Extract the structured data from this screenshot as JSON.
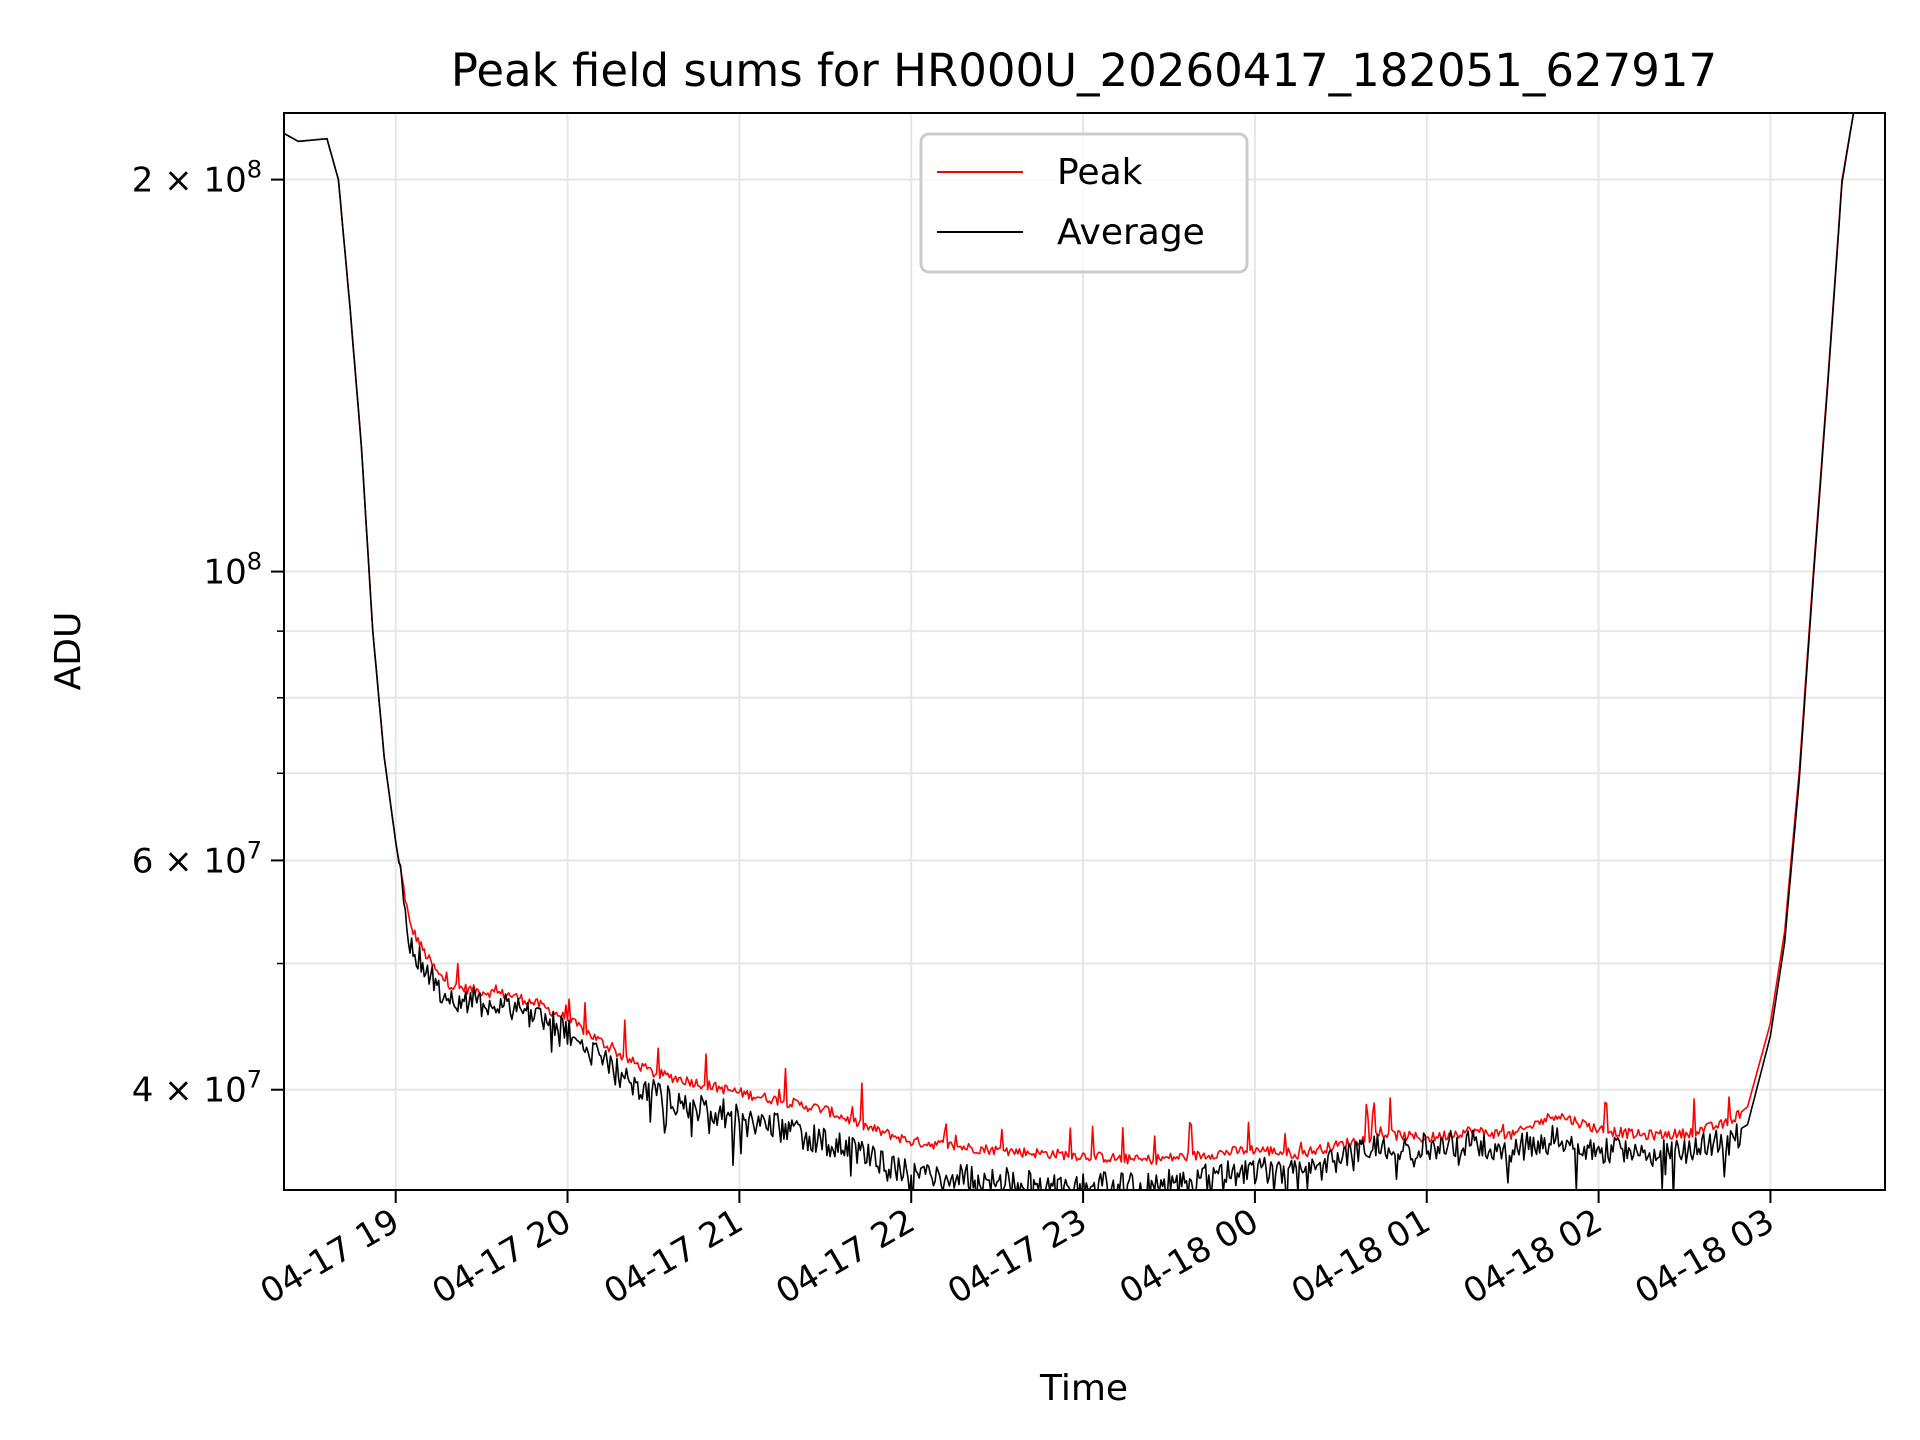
{
  "chart_data": {
    "type": "line",
    "title": "Peak field sums for HR000U_20260417_182051_627917",
    "xlabel": "Time",
    "ylabel": "ADU",
    "yscale": "log",
    "xlim": [
      "2026-04-17 18:21",
      "2026-04-18 03:40"
    ],
    "ylim": [
      33500000,
      225000000
    ],
    "xticks": [
      {
        "label": "04-17 19",
        "time": "2026-04-17 19:00"
      },
      {
        "label": "04-17 20",
        "time": "2026-04-17 20:00"
      },
      {
        "label": "04-17 21",
        "time": "2026-04-17 21:00"
      },
      {
        "label": "04-17 22",
        "time": "2026-04-17 22:00"
      },
      {
        "label": "04-17 23",
        "time": "2026-04-17 23:00"
      },
      {
        "label": "04-18 00",
        "time": "2026-04-18 00:00"
      },
      {
        "label": "04-18 01",
        "time": "2026-04-18 01:00"
      },
      {
        "label": "04-18 02",
        "time": "2026-04-18 02:00"
      },
      {
        "label": "04-18 03",
        "time": "2026-04-18 03:00"
      }
    ],
    "yticks_major": [
      {
        "base": "2 × 10",
        "exp": "8",
        "value": 200000000
      },
      {
        "base": "10",
        "exp": "8",
        "value": 100000000
      },
      {
        "base": "6 × 10",
        "exp": "7",
        "value": 60000000
      },
      {
        "base": "4 × 10",
        "exp": "7",
        "value": 40000000
      }
    ],
    "yticks_minor": [
      90000000,
      80000000,
      70000000,
      50000000
    ],
    "grid": true,
    "legend_position": "top-center",
    "series": [
      {
        "name": "Peak",
        "color": "#ff0000",
        "points": [
          [
            "2026-04-17 18:21",
            217000000
          ],
          [
            "2026-04-17 18:26",
            214000000
          ],
          [
            "2026-04-17 18:36",
            215000000
          ],
          [
            "2026-04-17 18:40",
            200000000
          ],
          [
            "2026-04-17 18:44",
            160000000
          ],
          [
            "2026-04-17 18:48",
            125000000
          ],
          [
            "2026-04-17 18:52",
            90000000
          ],
          [
            "2026-04-17 18:56",
            72000000
          ],
          [
            "2026-04-17 19:00",
            62000000
          ],
          [
            "2026-04-17 19:05",
            53500000
          ],
          [
            "2026-04-17 19:10",
            51000000
          ],
          [
            "2026-04-17 19:15",
            49000000
          ],
          [
            "2026-04-17 19:20",
            48000000
          ],
          [
            "2026-04-17 19:30",
            47600000
          ],
          [
            "2026-04-17 19:40",
            47300000
          ],
          [
            "2026-04-17 19:50",
            46500000
          ],
          [
            "2026-04-17 20:00",
            45300000
          ],
          [
            "2026-04-17 20:10",
            43800000
          ],
          [
            "2026-04-17 20:20",
            42300000
          ],
          [
            "2026-04-17 20:30",
            41200000
          ],
          [
            "2026-04-17 20:45",
            40500000
          ],
          [
            "2026-04-17 21:00",
            39800000
          ],
          [
            "2026-04-17 21:15",
            39200000
          ],
          [
            "2026-04-17 21:30",
            38600000
          ],
          [
            "2026-04-17 21:45",
            37400000
          ],
          [
            "2026-04-17 22:00",
            36500000
          ],
          [
            "2026-04-17 22:20",
            36100000
          ],
          [
            "2026-04-17 22:40",
            35800000
          ],
          [
            "2026-04-17 23:00",
            35600000
          ],
          [
            "2026-04-17 23:20",
            35300000
          ],
          [
            "2026-04-17 23:40",
            35600000
          ],
          [
            "2026-04-18 00:00",
            36000000
          ],
          [
            "2026-04-18 00:15",
            35700000
          ],
          [
            "2026-04-18 00:30",
            36300000
          ],
          [
            "2026-04-18 00:45",
            37000000
          ],
          [
            "2026-04-18 01:00",
            36700000
          ],
          [
            "2026-04-18 01:15",
            37200000
          ],
          [
            "2026-04-18 01:30",
            36900000
          ],
          [
            "2026-04-18 01:45",
            38300000
          ],
          [
            "2026-04-18 02:00",
            37300000
          ],
          [
            "2026-04-18 02:15",
            36900000
          ],
          [
            "2026-04-18 02:30",
            37000000
          ],
          [
            "2026-04-18 02:45",
            37700000
          ],
          [
            "2026-04-18 02:52",
            38800000
          ],
          [
            "2026-04-18 03:00",
            45000000
          ],
          [
            "2026-04-18 03:05",
            53000000
          ],
          [
            "2026-04-18 03:10",
            70000000
          ],
          [
            "2026-04-18 03:15",
            100000000
          ],
          [
            "2026-04-18 03:20",
            140000000
          ],
          [
            "2026-04-18 03:25",
            200000000
          ],
          [
            "2026-04-18 03:29",
            225000000
          ]
        ]
      },
      {
        "name": "Average",
        "color": "#000000",
        "points": [
          [
            "2026-04-17 18:21",
            217000000
          ],
          [
            "2026-04-17 18:26",
            214000000
          ],
          [
            "2026-04-17 18:36",
            215000000
          ],
          [
            "2026-04-17 18:40",
            200000000
          ],
          [
            "2026-04-17 18:44",
            160000000
          ],
          [
            "2026-04-17 18:48",
            125000000
          ],
          [
            "2026-04-17 18:52",
            90000000
          ],
          [
            "2026-04-17 18:56",
            72000000
          ],
          [
            "2026-04-17 19:00",
            62000000
          ],
          [
            "2026-04-17 19:05",
            52500000
          ],
          [
            "2026-04-17 19:10",
            50000000
          ],
          [
            "2026-04-17 19:15",
            48300000
          ],
          [
            "2026-04-17 19:20",
            47300000
          ],
          [
            "2026-04-17 19:30",
            47000000
          ],
          [
            "2026-04-17 19:40",
            46800000
          ],
          [
            "2026-04-17 19:50",
            45900000
          ],
          [
            "2026-04-17 20:00",
            44600000
          ],
          [
            "2026-04-17 20:10",
            42700000
          ],
          [
            "2026-04-17 20:20",
            41200000
          ],
          [
            "2026-04-17 20:30",
            40000000
          ],
          [
            "2026-04-17 20:45",
            39100000
          ],
          [
            "2026-04-17 21:00",
            38400000
          ],
          [
            "2026-04-17 21:15",
            37600000
          ],
          [
            "2026-04-17 21:30",
            36800000
          ],
          [
            "2026-04-17 21:45",
            35700000
          ],
          [
            "2026-04-17 22:00",
            34800000
          ],
          [
            "2026-04-17 22:20",
            34500000
          ],
          [
            "2026-04-17 22:40",
            34100000
          ],
          [
            "2026-04-17 23:00",
            34100000
          ],
          [
            "2026-04-17 23:20",
            33900000
          ],
          [
            "2026-04-17 23:40",
            34400000
          ],
          [
            "2026-04-18 00:00",
            35000000
          ],
          [
            "2026-04-18 00:15",
            35000000
          ],
          [
            "2026-04-18 00:30",
            35800000
          ],
          [
            "2026-04-18 00:45",
            36600000
          ],
          [
            "2026-04-18 01:00",
            36400000
          ],
          [
            "2026-04-18 01:15",
            36700000
          ],
          [
            "2026-04-18 01:30",
            36200000
          ],
          [
            "2026-04-18 01:45",
            37000000
          ],
          [
            "2026-04-18 02:00",
            36300000
          ],
          [
            "2026-04-18 02:15",
            35900000
          ],
          [
            "2026-04-18 02:30",
            36100000
          ],
          [
            "2026-04-18 02:45",
            36800000
          ],
          [
            "2026-04-18 02:52",
            37600000
          ],
          [
            "2026-04-18 03:00",
            44000000
          ],
          [
            "2026-04-18 03:05",
            52000000
          ],
          [
            "2026-04-18 03:10",
            69000000
          ],
          [
            "2026-04-18 03:15",
            99000000
          ],
          [
            "2026-04-18 03:20",
            139000000
          ],
          [
            "2026-04-18 03:25",
            199000000
          ],
          [
            "2026-04-18 03:29",
            225000000
          ]
        ]
      }
    ]
  }
}
